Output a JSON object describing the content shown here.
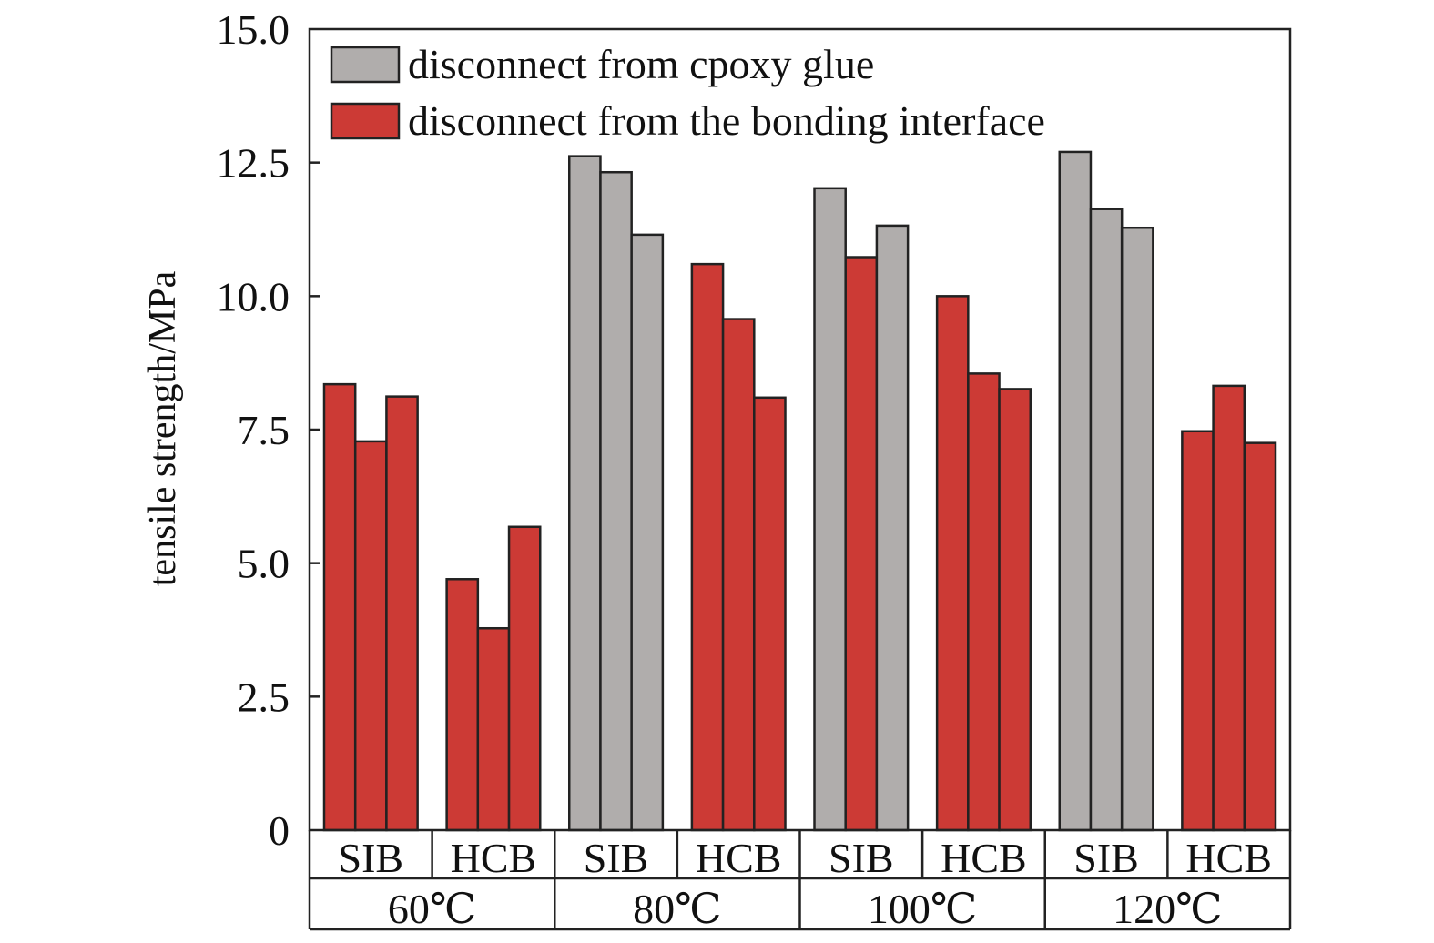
{
  "chart_data": {
    "type": "bar",
    "ylabel": "tensile strength/MPa",
    "ylim": [
      0,
      15
    ],
    "yticks": [
      {
        "value": 0,
        "label": "0"
      },
      {
        "value": 2.5,
        "label": "2.5"
      },
      {
        "value": 5,
        "label": "5.0"
      },
      {
        "value": 7.5,
        "label": "7.5"
      },
      {
        "value": 10,
        "label": "10.0"
      },
      {
        "value": 12.5,
        "label": "12.5"
      },
      {
        "value": 15,
        "label": "15.0"
      }
    ],
    "legend_position": "top-left",
    "legend": [
      {
        "key": "epoxy",
        "label": "disconnect from cpoxy glue",
        "color": "#b0adac"
      },
      {
        "key": "interface",
        "label": "disconnect from the bonding interface",
        "color": "#cc3a35"
      }
    ],
    "temperatures": [
      "60℃",
      "80℃",
      "100℃",
      "120℃"
    ],
    "groups": [
      {
        "temperature": "60℃",
        "sample": "SIB",
        "values": [
          8.35,
          7.28,
          8.12
        ],
        "failure": [
          "interface",
          "interface",
          "interface"
        ]
      },
      {
        "temperature": "60℃",
        "sample": "HCB",
        "values": [
          4.7,
          3.78,
          5.68
        ],
        "failure": [
          "interface",
          "interface",
          "interface"
        ]
      },
      {
        "temperature": "80℃",
        "sample": "SIB",
        "values": [
          12.62,
          12.32,
          11.15
        ],
        "failure": [
          "epoxy",
          "epoxy",
          "epoxy"
        ]
      },
      {
        "temperature": "80℃",
        "sample": "HCB",
        "values": [
          10.6,
          9.57,
          8.1
        ],
        "failure": [
          "interface",
          "interface",
          "interface"
        ]
      },
      {
        "temperature": "100℃",
        "sample": "SIB",
        "values": [
          12.02,
          10.73,
          11.32
        ],
        "failure": [
          "epoxy",
          "interface",
          "epoxy"
        ]
      },
      {
        "temperature": "100℃",
        "sample": "HCB",
        "values": [
          10.0,
          8.55,
          8.26
        ],
        "failure": [
          "interface",
          "interface",
          "interface"
        ]
      },
      {
        "temperature": "120℃",
        "sample": "SIB",
        "values": [
          12.7,
          11.63,
          11.28
        ],
        "failure": [
          "epoxy",
          "epoxy",
          "epoxy"
        ]
      },
      {
        "temperature": "120℃",
        "sample": "HCB",
        "values": [
          7.47,
          8.32,
          7.25
        ],
        "failure": [
          "interface",
          "interface",
          "interface"
        ]
      }
    ]
  }
}
